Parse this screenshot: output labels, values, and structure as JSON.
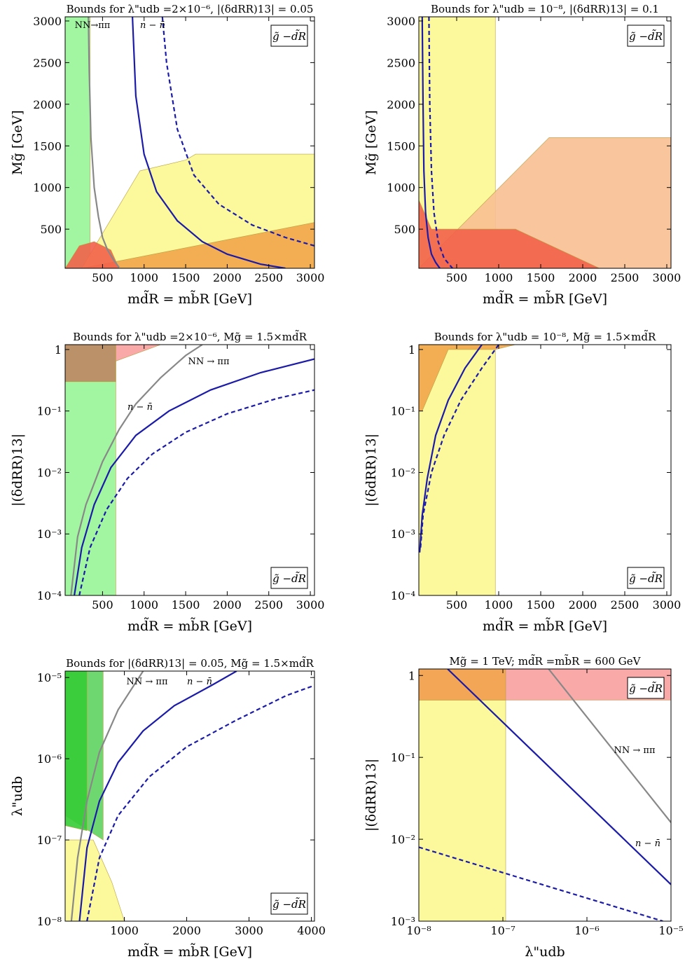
{
  "figure": {
    "colors": {
      "excluded_green_light": "#98f598",
      "excluded_green_mid": "#5fd35f",
      "excluded_green_dark": "#36cc36",
      "excluded_yellow": "#fbf890",
      "excluded_orange": "#f7bf92",
      "excluded_orange_dark": "#f2a54c",
      "excluded_red": "#f2624a",
      "excluded_pink": "#f9a0a0",
      "excluded_brown": "#bc8663",
      "nn_pipi_curve": "#888888",
      "n_nbar_curve": "#1b1ba8"
    }
  },
  "panels": [
    {
      "title": "Bounds for λ\"udb =2×10⁻⁶, |(δdRR)13| = 0.05",
      "xlabel": "md̃R = mb̃R [GeV]",
      "ylabel": "Mg̃ [GeV]",
      "legend_box": "g̃ −d̃R",
      "curve_labels": {
        "nn": "NN→ππ",
        "n": "n − n̄"
      },
      "x_ticks": [
        "500",
        "1000",
        "1500",
        "2000",
        "2500",
        "3000"
      ],
      "y_ticks": [
        "500",
        "1000",
        "1500",
        "2000",
        "2500",
        "3000"
      ]
    },
    {
      "title": "Bounds for λ\"udb = 10⁻⁸, |(δdRR)13| = 0.1",
      "xlabel": "md̃R = mb̃R [GeV]",
      "ylabel": "Mg̃ [GeV]",
      "legend_box": "g̃ −d̃R",
      "x_ticks": [
        "500",
        "1000",
        "1500",
        "2000",
        "2500",
        "3000"
      ],
      "y_ticks": [
        "500",
        "1000",
        "1500",
        "2000",
        "2500",
        "3000"
      ]
    },
    {
      "title": "Bounds for λ\"udb =2×10⁻⁶, Mg̃ = 1.5×md̃R",
      "xlabel": "md̃R = mb̃R [GeV]",
      "ylabel": "|(δdRR)13|",
      "legend_box": "g̃ −d̃R",
      "curve_labels": {
        "nn": "NN → ππ",
        "n": "n − n̄"
      },
      "x_ticks": [
        "500",
        "1000",
        "1500",
        "2000",
        "2500",
        "3000"
      ],
      "y_ticks": [
        "10⁻⁴",
        "10⁻³",
        "10⁻²",
        "10⁻¹",
        "1"
      ]
    },
    {
      "title": "Bounds for λ\"udb = 10⁻⁸, Mg̃ = 1.5×md̃R",
      "xlabel": "md̃R = mb̃R [GeV]",
      "ylabel": "|(δdRR)13|",
      "legend_box": "g̃ −d̃R",
      "x_ticks": [
        "500",
        "1000",
        "1500",
        "2000",
        "2500",
        "3000"
      ],
      "y_ticks": [
        "10⁻⁴",
        "10⁻³",
        "10⁻²",
        "10⁻¹",
        "1"
      ]
    },
    {
      "title": "Bounds for |(δdRR)13| = 0.05, Mg̃ = 1.5×md̃R",
      "xlabel": "md̃R = mb̃R [GeV]",
      "ylabel": "λ\"udb",
      "legend_box": "g̃ −d̃R",
      "curve_labels": {
        "nn": "NN → ππ",
        "n": "n − n̄"
      },
      "x_ticks": [
        "1000",
        "2000",
        "3000",
        "4000"
      ],
      "y_ticks": [
        "10⁻⁸",
        "10⁻⁷",
        "10⁻⁶",
        "10⁻⁵"
      ]
    },
    {
      "title": "Mg̃ = 1 TeV; md̃R =mb̃R = 600 GeV",
      "xlabel": "λ\"udb",
      "ylabel": "|(δdRR)13|",
      "legend_box": "g̃ −d̃R",
      "curve_labels": {
        "nn": "NN → ππ",
        "n": "n − n̄"
      },
      "x_ticks": [
        "10⁻⁸",
        "10⁻⁷",
        "10⁻⁶",
        "10⁻⁵"
      ],
      "y_ticks": [
        "10⁻³",
        "10⁻²",
        "10⁻¹",
        "1"
      ]
    }
  ],
  "chart_data": [
    {
      "type": "area",
      "x_range": [
        50,
        3050
      ],
      "y_range": [
        30,
        3050
      ],
      "log_x": false,
      "log_y": false,
      "series": [
        {
          "name": "NN→ππ",
          "style": "solid",
          "color": "#888888",
          "x": [
            330,
            340,
            360,
            400,
            450,
            500,
            560,
            640,
            700
          ],
          "y": [
            3050,
            2400,
            1600,
            1000,
            650,
            400,
            250,
            120,
            40
          ]
        },
        {
          "name": "n − n̄",
          "style": "solid",
          "color": "#1b1ba8",
          "x": [
            860,
            900,
            1000,
            1150,
            1400,
            1700,
            2000,
            2400,
            2700
          ],
          "y": [
            3050,
            2100,
            1400,
            950,
            600,
            350,
            200,
            80,
            30
          ]
        },
        {
          "name": "n − n̄",
          "style": "dashed",
          "color": "#1b1ba8",
          "x": [
            1220,
            1270,
            1400,
            1600,
            1900,
            2300,
            2700,
            3050
          ],
          "y": [
            3050,
            2500,
            1700,
            1150,
            800,
            550,
            400,
            300
          ]
        }
      ],
      "regions": [
        {
          "color": "#98f598",
          "x": [
            50,
            350,
            350,
            50
          ],
          "y": [
            3050,
            3050,
            30,
            30
          ]
        },
        {
          "color": "#fbf890",
          "x": [
            250,
            950,
            1500,
            1620,
            3050,
            3050,
            250
          ],
          "y": [
            30,
            1200,
            1330,
            1400,
            1400,
            30,
            30
          ]
        },
        {
          "color": "#f2a54c",
          "x": [
            250,
            3050,
            3050,
            250
          ],
          "y": [
            30,
            580,
            30,
            30
          ]
        },
        {
          "color": "#f2624a",
          "x": [
            50,
            220,
            400,
            600,
            700,
            50
          ],
          "y": [
            30,
            300,
            350,
            250,
            30,
            30
          ]
        }
      ],
      "arrows": [
        "NN→ππ points to lower x",
        "n − n̄ points to lower x"
      ]
    },
    {
      "type": "area",
      "x_range": [
        50,
        3050
      ],
      "y_range": [
        30,
        3050
      ],
      "log_x": false,
      "log_y": false,
      "series": [
        {
          "name": "n − n̄",
          "style": "solid",
          "color": "#1b1ba8",
          "x": [
            90,
            100,
            110,
            130,
            160,
            200,
            250,
            300
          ],
          "y": [
            3050,
            2000,
            1200,
            700,
            400,
            200,
            100,
            30
          ]
        },
        {
          "name": "n − n̄",
          "style": "dashed",
          "color": "#1b1ba8",
          "x": [
            170,
            180,
            200,
            230,
            280,
            350,
            450
          ],
          "y": [
            3050,
            2000,
            1200,
            700,
            350,
            150,
            30
          ]
        }
      ],
      "regions": [
        {
          "color": "#fbf890",
          "x": [
            50,
            960,
            960,
            50
          ],
          "y": [
            3050,
            3050,
            30,
            30
          ]
        },
        {
          "color": "#f7bf92",
          "x": [
            50,
            1600,
            3050,
            3050,
            50
          ],
          "y": [
            30,
            1600,
            1600,
            30,
            30
          ]
        },
        {
          "color": "#f2624a",
          "x": [
            50,
            200,
            600,
            1200,
            2200,
            2200,
            50
          ],
          "y": [
            850,
            500,
            500,
            500,
            30,
            30,
            30
          ]
        }
      ]
    },
    {
      "type": "line",
      "x_range": [
        50,
        3050
      ],
      "y_range": [
        0.0001,
        1.2
      ],
      "log_x": false,
      "log_y": true,
      "series": [
        {
          "name": "NN → ππ",
          "style": "solid",
          "color": "#888888",
          "x": [
            120,
            200,
            300,
            500,
            700,
            900,
            1200,
            1500,
            1700
          ],
          "y": [
            0.0001,
            0.0009,
            0.003,
            0.015,
            0.05,
            0.13,
            0.35,
            0.8,
            1.2
          ]
        },
        {
          "name": "n − n̄",
          "style": "solid",
          "color": "#1b1ba8",
          "x": [
            160,
            250,
            400,
            600,
            900,
            1300,
            1800,
            2400,
            3050
          ],
          "y": [
            0.0001,
            0.0006,
            0.003,
            0.012,
            0.04,
            0.1,
            0.22,
            0.42,
            0.7
          ]
        },
        {
          "name": "n − n̄",
          "style": "dashed",
          "color": "#1b1ba8",
          "x": [
            220,
            350,
            550,
            800,
            1100,
            1500,
            2000,
            2600,
            3050
          ],
          "y": [
            0.0001,
            0.0006,
            0.0025,
            0.008,
            0.02,
            0.045,
            0.09,
            0.16,
            0.22
          ]
        }
      ],
      "regions": [
        {
          "color": "#98f598",
          "x": [
            50,
            660,
            660,
            50
          ],
          "y": [
            1.2,
            1.2,
            0.0001,
            0.0001
          ]
        },
        {
          "color": "#bc8663",
          "x": [
            50,
            660,
            660,
            50
          ],
          "y": [
            1.2,
            1.2,
            0.3,
            0.3
          ]
        },
        {
          "color": "#f9a0a0",
          "x": [
            660,
            1200,
            660
          ],
          "y": [
            1.2,
            1.2,
            0.65
          ]
        }
      ]
    },
    {
      "type": "line",
      "x_range": [
        50,
        3050
      ],
      "y_range": [
        0.0001,
        1.2
      ],
      "log_x": false,
      "log_y": true,
      "series": [
        {
          "name": "n − n̄",
          "style": "solid",
          "color": "#1b1ba8",
          "x": [
            60,
            90,
            150,
            250,
            400,
            600,
            800
          ],
          "y": [
            0.0005,
            0.002,
            0.008,
            0.04,
            0.15,
            0.5,
            1.2
          ]
        },
        {
          "name": "n − n̄",
          "style": "dashed",
          "color": "#1b1ba8",
          "x": [
            70,
            100,
            200,
            350,
            550,
            800,
            1000
          ],
          "y": [
            0.0006,
            0.002,
            0.01,
            0.04,
            0.15,
            0.5,
            1.2
          ]
        }
      ],
      "regions": [
        {
          "color": "#fbf890",
          "x": [
            50,
            960,
            960,
            50
          ],
          "y": [
            1.2,
            1.2,
            0.0001,
            0.0001
          ]
        },
        {
          "color": "#f2a54c",
          "x": [
            50,
            800,
            1200,
            960,
            400,
            90,
            50
          ],
          "y": [
            1.2,
            1.2,
            1.2,
            1.0,
            1.0,
            0.1,
            0.1
          ]
        }
      ]
    },
    {
      "type": "line",
      "x_range": [
        50,
        4050
      ],
      "y_range": [
        1e-08,
        1.2e-05
      ],
      "log_x": false,
      "log_y": true,
      "series": [
        {
          "name": "NN → ππ",
          "style": "solid",
          "color": "#888888",
          "x": [
            150,
            250,
            400,
            600,
            900,
            1300
          ],
          "y": [
            1e-08,
            6e-08,
            3e-07,
            1.2e-06,
            4e-06,
            1.2e-05
          ]
        },
        {
          "name": "n − n̄",
          "style": "solid",
          "color": "#1b1ba8",
          "x": [
            280,
            400,
            600,
            900,
            1300,
            1800,
            2400,
            2800
          ],
          "y": [
            1e-08,
            8e-08,
            3e-07,
            9e-07,
            2.2e-06,
            4.5e-06,
            8e-06,
            1.2e-05
          ]
        },
        {
          "name": "n − n̄",
          "style": "dashed",
          "color": "#1b1ba8",
          "x": [
            400,
            600,
            900,
            1400,
            2000,
            2800,
            3600,
            4050
          ],
          "y": [
            1e-08,
            6e-08,
            2e-07,
            6e-07,
            1.4e-06,
            3e-06,
            6e-06,
            8e-06
          ]
        }
      ],
      "regions": [
        {
          "color": "#fbf890",
          "x": [
            50,
            500,
            800,
            1000,
            50
          ],
          "y": [
            1e-07,
            1e-07,
            3e-08,
            1e-08,
            1e-08
          ]
        },
        {
          "color": "#5fd35f",
          "x": [
            50,
            660,
            660,
            50
          ],
          "y": [
            1.2e-05,
            1.2e-05,
            1e-07,
            2e-07
          ]
        },
        {
          "color": "#36cc36",
          "x": [
            50,
            400,
            400,
            50
          ],
          "y": [
            1.2e-05,
            1.2e-05,
            1.3e-07,
            1.5e-07
          ]
        }
      ]
    },
    {
      "type": "line",
      "x_range": [
        1e-08,
        1e-05
      ],
      "y_range": [
        0.001,
        1.2
      ],
      "log_x": true,
      "log_y": true,
      "series": [
        {
          "name": "NN → ππ",
          "style": "solid",
          "color": "#888888",
          "x": [
            3.5e-07,
            1e-05
          ],
          "y": [
            1.2,
            0.016
          ]
        },
        {
          "name": "n − n̄",
          "style": "solid",
          "color": "#1b1ba8",
          "x": [
            2.2e-08,
            1e-05
          ],
          "y": [
            1.2,
            0.0028
          ]
        },
        {
          "name": "n − n̄",
          "style": "dashed",
          "color": "#1b1ba8",
          "x": [
            1e-08,
            8e-06
          ],
          "y": [
            0.008,
            0.001
          ]
        }
      ],
      "regions": [
        {
          "color": "#fbf890",
          "x": [
            1e-08,
            1.08e-07,
            1.08e-07,
            1e-08
          ],
          "y": [
            1.2,
            1.2,
            0.001,
            0.001
          ]
        },
        {
          "color": "#f9a0a0",
          "x": [
            1e-08,
            1e-05,
            1e-05,
            1e-08
          ],
          "y": [
            1.2,
            1.2,
            0.5,
            0.5
          ]
        },
        {
          "color": "#f2a54c",
          "x": [
            1e-08,
            1.08e-07,
            1.08e-07,
            1e-08
          ],
          "y": [
            1.2,
            1.2,
            0.5,
            0.5
          ]
        }
      ]
    }
  ]
}
